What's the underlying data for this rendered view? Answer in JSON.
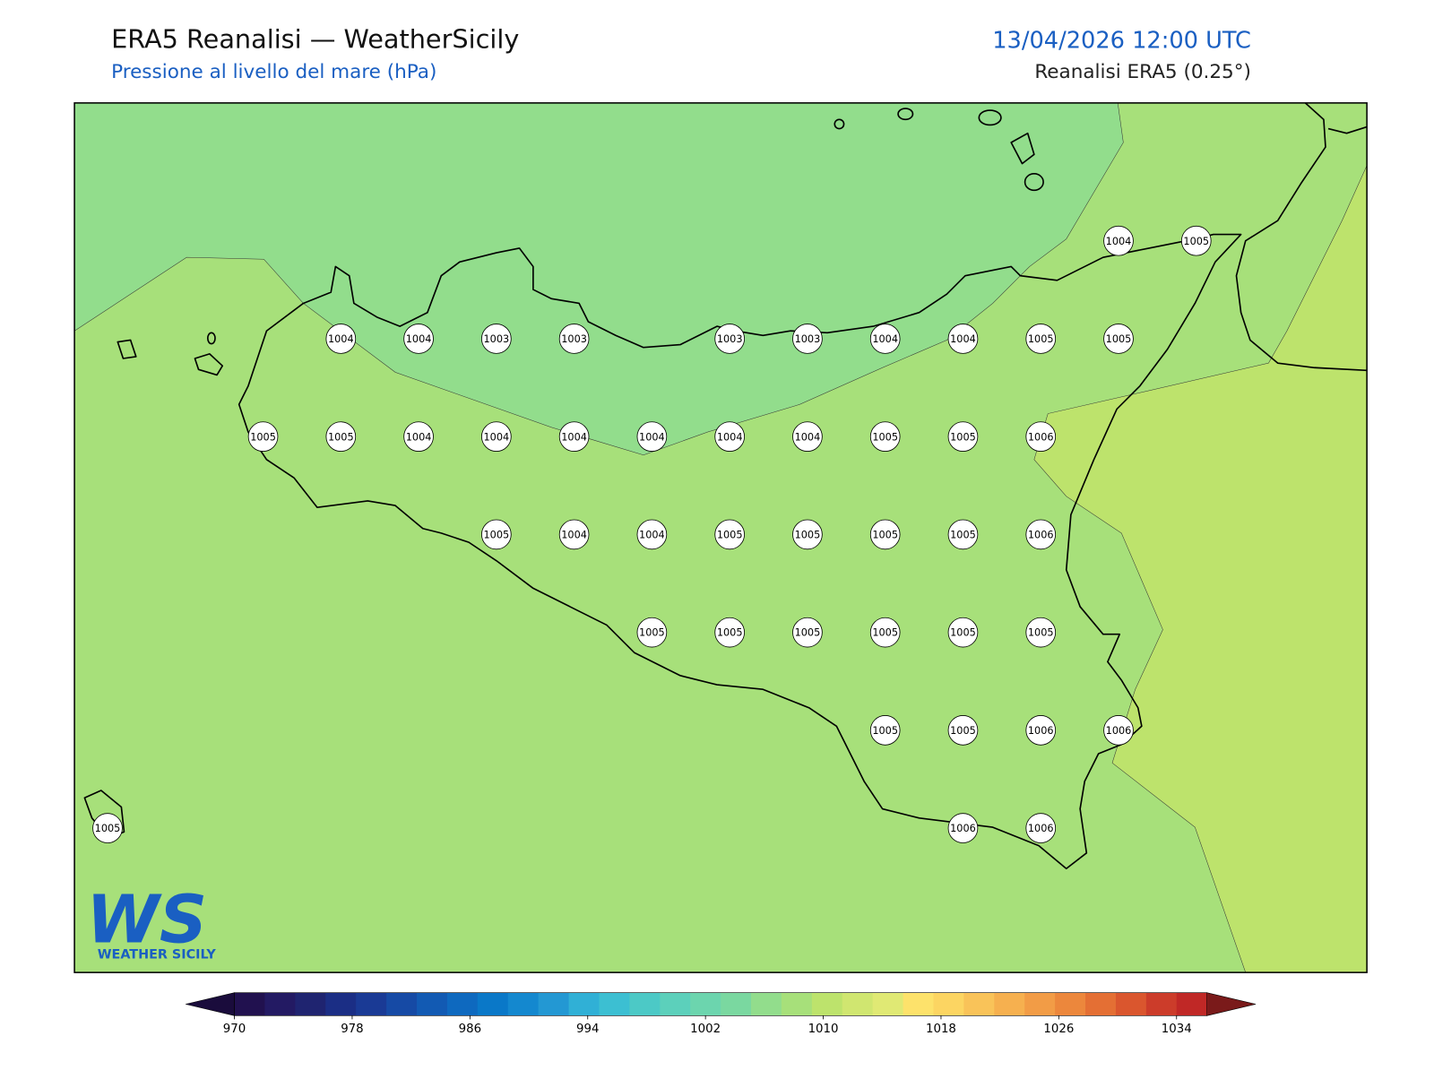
{
  "header": {
    "title": "ERA5 Reanalisi — WeatherSicily",
    "subtitle": "Pressione al livello del mare (hPa)",
    "datetime": "13/04/2026 12:00 UTC",
    "source": "Reanalisi ERA5 (0.25°)"
  },
  "pressure_labels": [
    [
      null,
      null,
      null,
      null,
      null,
      null,
      null,
      null,
      null,
      null,
      null,
      null,
      null,
      1004,
      1005
    ],
    [
      null,
      null,
      null,
      1004,
      1004,
      1003,
      1003,
      null,
      1003,
      1003,
      1004,
      1004,
      1005,
      1005,
      null
    ],
    [
      null,
      null,
      1005,
      1005,
      1004,
      1004,
      1004,
      1004,
      1004,
      1004,
      1005,
      1005,
      1006,
      null,
      null
    ],
    [
      null,
      null,
      null,
      null,
      null,
      1005,
      1004,
      1004,
      1005,
      1005,
      1005,
      1005,
      1006,
      null,
      null
    ],
    [
      null,
      null,
      null,
      null,
      null,
      null,
      null,
      1005,
      1005,
      1005,
      1005,
      1005,
      1005,
      null,
      null
    ],
    [
      null,
      null,
      null,
      null,
      null,
      null,
      null,
      null,
      null,
      null,
      1005,
      1005,
      1006,
      1006,
      null
    ],
    [
      1005,
      null,
      null,
      null,
      null,
      null,
      null,
      null,
      null,
      null,
      null,
      1006,
      1006,
      null,
      null
    ]
  ],
  "colorbar": {
    "ticks": [
      970,
      978,
      986,
      994,
      1002,
      1010,
      1018,
      1026,
      1034
    ],
    "colors": [
      "#21114f",
      "#231a63",
      "#1f2470",
      "#1b2e85",
      "#1a3a95",
      "#164aa5",
      "#125ab3",
      "#0e69bf",
      "#0a78c8",
      "#1488cf",
      "#2398d3",
      "#30b0d6",
      "#3cbfd2",
      "#4cc9c6",
      "#5cd0bb",
      "#6cd5ae",
      "#7ad8a0",
      "#92dd8c",
      "#a7e07a",
      "#bde36c",
      "#d0e670",
      "#e0e974",
      "#fde26b",
      "#fcd562",
      "#f9c359",
      "#f6b04f",
      "#f29c46",
      "#ec873c",
      "#e46f34",
      "#da562e",
      "#cc3c2a",
      "#c02826"
    ],
    "under_color": "#1a0c3c",
    "over_color": "#7a1a1a"
  },
  "logo": {
    "text": "WS",
    "caption": "WEATHER SICILY"
  }
}
